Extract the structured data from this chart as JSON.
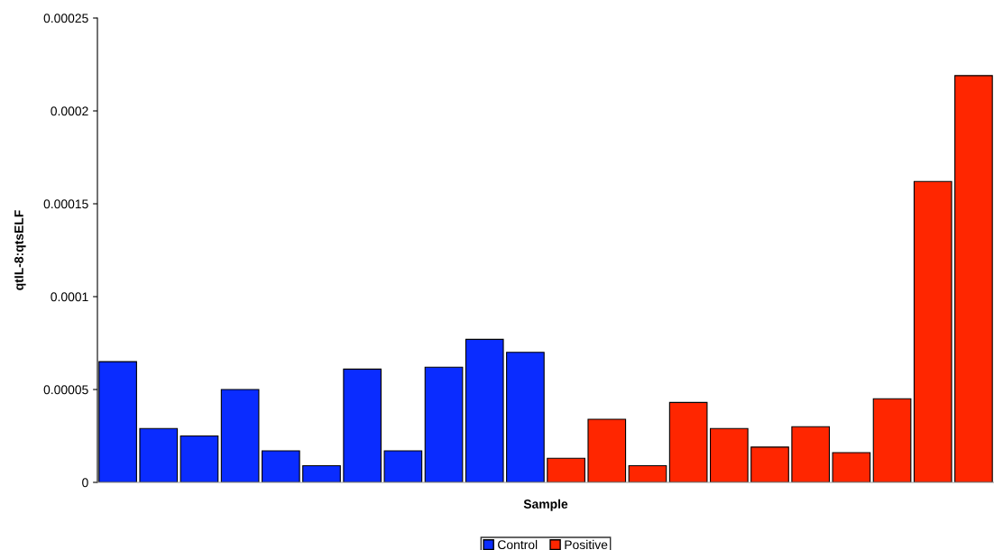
{
  "chart_data": {
    "type": "bar",
    "xlabel": "Sample",
    "ylabel": "qtIL-8:qtsELF",
    "categories": [
      null,
      null,
      null,
      null,
      null,
      null,
      null,
      null,
      null,
      null,
      null,
      null,
      null,
      null,
      null,
      null,
      null,
      null,
      null,
      null,
      null,
      null
    ],
    "series": [
      {
        "name": "Control",
        "color": "#0a2cff",
        "values": [
          6.5e-05,
          2.9e-05,
          2.5e-05,
          5e-05,
          1.7e-05,
          9e-06,
          6.1e-05,
          1.7e-05,
          6.2e-05,
          7.7e-05,
          7e-05,
          null,
          null,
          null,
          null,
          null,
          null,
          null,
          null,
          null,
          null,
          null
        ]
      },
      {
        "name": "Positive",
        "color": "#ff2600",
        "values": [
          null,
          null,
          null,
          null,
          null,
          null,
          null,
          null,
          null,
          null,
          null,
          1.3e-05,
          3.4e-05,
          9e-06,
          4.3e-05,
          2.9e-05,
          1.9e-05,
          3e-05,
          1.6e-05,
          4.5e-05,
          0.000162,
          0.000219
        ]
      }
    ],
    "ylim": [
      0,
      0.00025
    ],
    "yticks": [
      {
        "value": 0,
        "label": "0"
      },
      {
        "value": 5e-05,
        "label": "0.00005"
      },
      {
        "value": 0.0001,
        "label": "0.0001"
      },
      {
        "value": 0.00015,
        "label": "0.00015"
      },
      {
        "value": 0.0002,
        "label": "0.0002"
      },
      {
        "value": 0.00025,
        "label": "0.00025"
      }
    ],
    "legend": "bottom"
  }
}
